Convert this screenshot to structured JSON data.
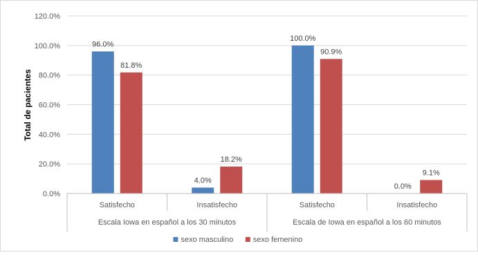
{
  "chart_data": {
    "type": "bar",
    "title": "",
    "ylabel": "Total de pacientes",
    "xlabel": "",
    "ylim": [
      0,
      120
    ],
    "y_ticks": [
      "0.0%",
      "20.0%",
      "40.0%",
      "60.0%",
      "80.0%",
      "100.0%",
      "120.0%"
    ],
    "groups": [
      {
        "label": "Escala Iowa en español a los 30 minutos",
        "categories": [
          "Satisfecho",
          "Insatisfecho"
        ]
      },
      {
        "label": "Escala de Iowa en español a los 60 minutos",
        "categories": [
          "Satisfecho",
          "Insatisfecho"
        ]
      }
    ],
    "series": [
      {
        "name": "sexo masculino",
        "color": "#4F81BD",
        "values": [
          96.0,
          4.0,
          100.0,
          0.0
        ],
        "labels": [
          "96.0%",
          "4.0%",
          "100.0%",
          "0.0%"
        ]
      },
      {
        "name": "sexo femenino",
        "color": "#C0504D",
        "values": [
          81.8,
          18.2,
          90.9,
          9.1
        ],
        "labels": [
          "81.8%",
          "18.2%",
          "90.9%",
          "9.1%"
        ]
      }
    ],
    "grid": true,
    "legend_position": "bottom"
  }
}
